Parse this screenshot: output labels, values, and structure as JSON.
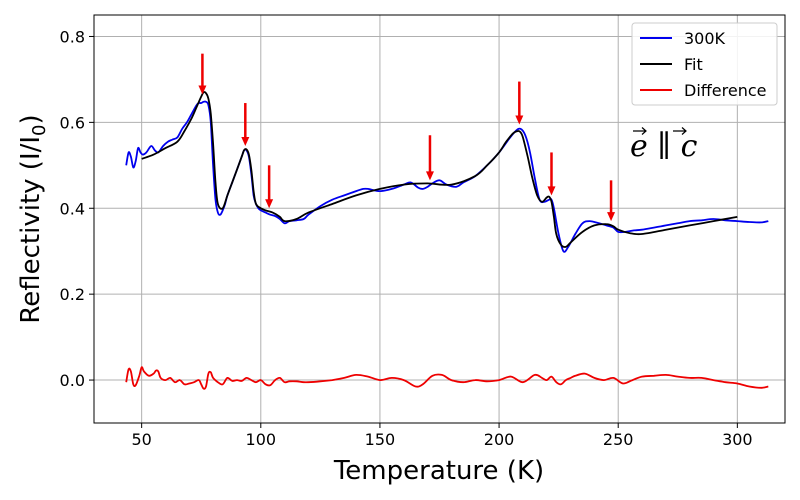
{
  "chart_data": {
    "type": "line",
    "xlabel": "Temperature (K)",
    "ylabel_main": "Reflectivity (I/I",
    "ylabel_sub": "0",
    "ylabel_close": ")",
    "xlim": [
      30,
      320
    ],
    "ylim": [
      -0.1,
      0.85
    ],
    "grid": true,
    "legend_position": "top-right",
    "x_ticks": [
      50,
      100,
      150,
      200,
      250,
      300
    ],
    "x_tick_labels": [
      "50",
      "100",
      "150",
      "200",
      "250",
      "300"
    ],
    "y_ticks": [
      0.0,
      0.2,
      0.4,
      0.6,
      0.8
    ],
    "y_tick_labels": [
      "0.0",
      "0.2",
      "0.4",
      "0.6",
      "0.8"
    ],
    "annotation": "e ∥ c",
    "series": [
      {
        "name": "300K",
        "color": "#0000ee",
        "x": [
          43.5,
          44.5,
          45.5,
          46.5,
          47.5,
          48.5,
          49.5,
          50.5,
          52,
          54,
          55.5,
          57,
          59,
          61,
          63,
          65,
          67,
          69,
          71,
          73,
          74,
          75,
          76,
          77,
          78,
          79,
          80,
          81,
          82,
          83,
          84,
          85,
          86,
          88,
          90,
          92,
          93,
          94,
          95,
          96,
          97,
          98,
          99,
          100,
          102,
          104,
          106,
          108,
          110,
          112,
          115,
          118,
          120,
          125,
          130,
          135,
          140,
          143,
          145,
          150,
          155,
          160,
          163,
          166,
          168,
          170,
          172,
          175,
          178,
          182,
          185,
          190,
          195,
          200,
          204,
          207,
          209,
          211,
          213,
          215,
          217,
          219,
          221,
          222,
          223,
          225,
          227,
          229,
          232,
          235,
          238,
          242,
          245,
          248,
          250,
          253,
          256,
          260,
          265,
          270,
          275,
          280,
          285,
          290,
          295,
          300,
          305,
          310,
          313
        ],
        "y": [
          0.5,
          0.53,
          0.52,
          0.495,
          0.51,
          0.54,
          0.53,
          0.525,
          0.53,
          0.545,
          0.535,
          0.53,
          0.545,
          0.555,
          0.56,
          0.565,
          0.585,
          0.6,
          0.62,
          0.64,
          0.645,
          0.645,
          0.648,
          0.648,
          0.64,
          0.6,
          0.5,
          0.42,
          0.39,
          0.385,
          0.395,
          0.41,
          0.43,
          0.46,
          0.49,
          0.52,
          0.535,
          0.535,
          0.52,
          0.48,
          0.43,
          0.41,
          0.4,
          0.395,
          0.39,
          0.385,
          0.382,
          0.375,
          0.365,
          0.37,
          0.372,
          0.375,
          0.385,
          0.405,
          0.42,
          0.43,
          0.44,
          0.445,
          0.445,
          0.44,
          0.445,
          0.455,
          0.46,
          0.448,
          0.445,
          0.45,
          0.458,
          0.465,
          0.455,
          0.45,
          0.46,
          0.475,
          0.5,
          0.53,
          0.56,
          0.58,
          0.585,
          0.57,
          0.53,
          0.47,
          0.42,
          0.415,
          0.42,
          0.42,
          0.4,
          0.34,
          0.3,
          0.31,
          0.34,
          0.365,
          0.37,
          0.365,
          0.36,
          0.355,
          0.345,
          0.345,
          0.348,
          0.35,
          0.355,
          0.36,
          0.365,
          0.37,
          0.372,
          0.375,
          0.372,
          0.37,
          0.368,
          0.367,
          0.37
        ]
      },
      {
        "name": "Fit",
        "color": "#000000",
        "x": [
          50,
          55,
          60,
          65,
          68,
          71,
          73,
          75,
          76,
          77,
          78,
          79,
          80,
          81,
          82,
          84,
          86,
          88,
          90,
          92,
          93,
          94,
          95,
          96,
          97,
          98,
          100,
          102,
          105,
          108,
          110,
          115,
          120,
          130,
          140,
          150,
          160,
          170,
          180,
          190,
          195,
          200,
          203,
          206,
          208,
          209,
          210,
          212,
          214,
          216,
          218,
          220,
          221,
          222,
          223,
          224,
          226,
          228,
          230,
          235,
          240,
          245,
          248,
          250,
          255,
          260,
          270,
          280,
          290,
          300
        ],
        "y": [
          0.515,
          0.525,
          0.54,
          0.555,
          0.58,
          0.61,
          0.635,
          0.66,
          0.67,
          0.668,
          0.655,
          0.62,
          0.55,
          0.46,
          0.41,
          0.4,
          0.43,
          0.46,
          0.49,
          0.52,
          0.535,
          0.537,
          0.525,
          0.49,
          0.44,
          0.41,
          0.4,
          0.395,
          0.39,
          0.38,
          0.37,
          0.375,
          0.39,
          0.41,
          0.43,
          0.445,
          0.455,
          0.458,
          0.455,
          0.475,
          0.5,
          0.53,
          0.555,
          0.575,
          0.58,
          0.577,
          0.565,
          0.52,
          0.47,
          0.43,
          0.415,
          0.425,
          0.427,
          0.415,
          0.38,
          0.34,
          0.315,
          0.31,
          0.32,
          0.345,
          0.36,
          0.363,
          0.358,
          0.35,
          0.342,
          0.34,
          0.35,
          0.36,
          0.37,
          0.38
        ]
      },
      {
        "name": "Difference",
        "color": "#ee0000",
        "x": [
          43.5,
          44.5,
          45.5,
          46.5,
          47.5,
          49,
          50,
          51,
          53,
          55,
          56,
          57,
          58,
          60,
          62,
          64,
          66,
          68,
          70,
          72,
          74,
          75,
          76,
          77,
          78,
          79,
          80,
          82,
          84,
          86,
          88,
          90,
          92,
          94,
          96,
          98,
          100,
          102,
          104,
          106,
          108,
          110,
          112,
          115,
          118,
          120,
          125,
          130,
          135,
          140,
          145,
          150,
          155,
          160,
          165,
          168,
          172,
          176,
          180,
          185,
          190,
          195,
          200,
          205,
          210,
          215,
          218,
          220,
          222,
          224,
          226,
          228,
          230,
          232,
          236,
          240,
          244,
          248,
          252,
          256,
          260,
          265,
          270,
          275,
          280,
          285,
          290,
          295,
          300,
          305,
          310,
          313
        ],
        "y": [
          -0.005,
          0.025,
          0.02,
          -0.01,
          -0.012,
          0.01,
          0.03,
          0.02,
          0.01,
          0.015,
          0.022,
          0.02,
          0.005,
          0.0,
          0.005,
          -0.005,
          0.0,
          -0.01,
          -0.008,
          -0.005,
          0.0,
          -0.01,
          -0.02,
          -0.015,
          0.015,
          0.018,
          0.005,
          -0.005,
          -0.01,
          0.005,
          -0.002,
          0.0,
          -0.002,
          0.005,
          0.0,
          -0.005,
          0.0,
          -0.01,
          -0.012,
          0.0,
          0.005,
          -0.005,
          -0.003,
          -0.003,
          -0.005,
          -0.005,
          -0.003,
          0.0,
          0.005,
          0.012,
          0.008,
          0.0,
          0.005,
          0.0,
          -0.015,
          -0.01,
          0.01,
          0.012,
          0.0,
          -0.005,
          0.0,
          -0.003,
          0.0,
          0.008,
          -0.005,
          0.012,
          0.005,
          0.0,
          0.008,
          -0.005,
          -0.01,
          0.0,
          0.005,
          0.01,
          0.015,
          0.005,
          0.0,
          0.005,
          -0.008,
          0.0,
          0.008,
          0.01,
          0.012,
          0.008,
          0.005,
          0.005,
          0.0,
          -0.005,
          -0.008,
          -0.015,
          -0.018,
          -0.015
        ]
      }
    ],
    "arrows": [
      {
        "x": 75.5,
        "y_top": 0.76,
        "y_tip": 0.665
      },
      {
        "x": 93.5,
        "y_top": 0.645,
        "y_tip": 0.545
      },
      {
        "x": 103.5,
        "y_top": 0.5,
        "y_tip": 0.4
      },
      {
        "x": 171,
        "y_top": 0.57,
        "y_tip": 0.465
      },
      {
        "x": 208.5,
        "y_top": 0.695,
        "y_tip": 0.595
      },
      {
        "x": 222,
        "y_top": 0.53,
        "y_tip": 0.43
      },
      {
        "x": 247,
        "y_top": 0.465,
        "y_tip": 0.37
      }
    ]
  }
}
